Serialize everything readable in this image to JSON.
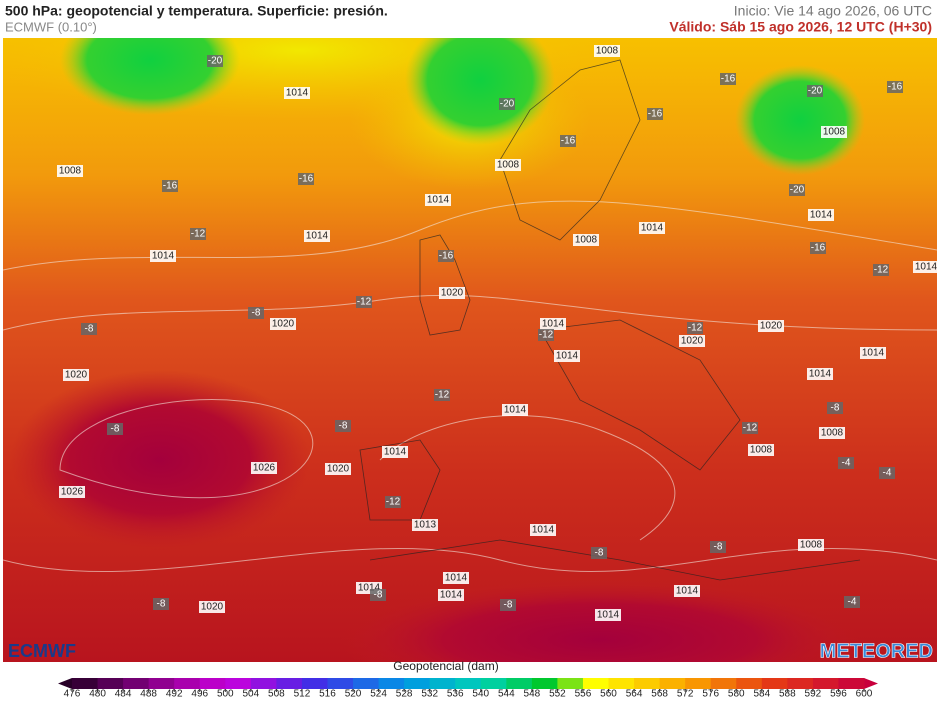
{
  "header": {
    "title": "500 hPa: geopotencial y temperatura. Superficie: presión.",
    "model": "ECMWF (0.10°)",
    "init": "Inicio: Vie 14 ago 2026, 06 UTC",
    "valid": "Válido: Sáb 15 ago 2026, 12 UTC (H+30)"
  },
  "map": {
    "pressure_labels": [
      1008,
      1014,
      1014,
      1014,
      1014,
      1020,
      1020,
      1020,
      1026,
      1026,
      1020,
      1014,
      1013,
      1014,
      1014,
      1014,
      1014,
      1008,
      1008,
      1008,
      1014,
      1008,
      1014,
      1020,
      1020,
      1014,
      1014,
      1008,
      1008,
      1008,
      1014,
      1014,
      1014,
      1014,
      1014,
      1020,
      1014
    ],
    "temperature_labels": [
      -20,
      -16,
      -16,
      -12,
      -16,
      -12,
      -8,
      -8,
      -20,
      -16,
      -16,
      -16,
      -20,
      -20,
      -16,
      -16,
      -12,
      -12,
      -12,
      -12,
      -8,
      -8,
      -12,
      -8,
      -8,
      -8,
      -12,
      -4,
      -4,
      -8,
      -8,
      -8,
      -4
    ]
  },
  "legend": {
    "title": "Geopotencial (dam)",
    "ticks": [
      476,
      480,
      484,
      488,
      492,
      496,
      500,
      504,
      508,
      512,
      516,
      520,
      524,
      528,
      532,
      536,
      540,
      544,
      548,
      552,
      556,
      560,
      564,
      568,
      572,
      576,
      580,
      584,
      588,
      592,
      596,
      600
    ]
  },
  "logos": {
    "left": "ECMWF",
    "right": "METEORED"
  }
}
